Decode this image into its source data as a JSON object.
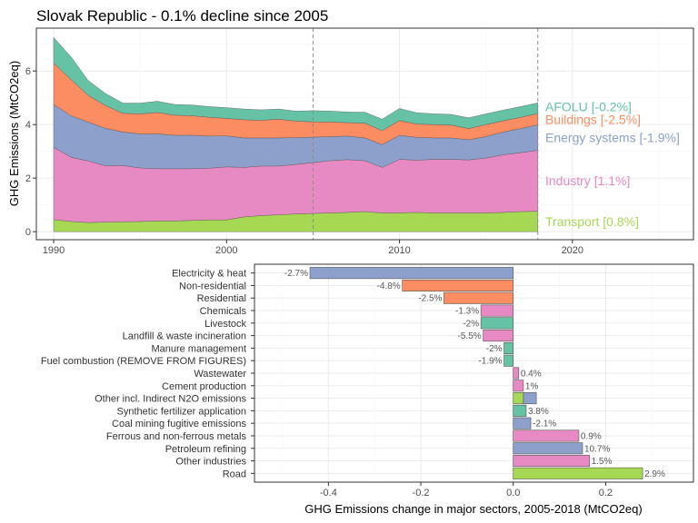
{
  "chart_data": [
    {
      "type": "area",
      "title": "Slovak Republic - 0.1% decline since 2005",
      "xlabel": "",
      "ylabel": "GHG Emissions (MtCO2eq)",
      "xlim": [
        1989,
        2027
      ],
      "ylim": [
        -0.3,
        7.6
      ],
      "xticks": [
        1990,
        2000,
        2010,
        2020
      ],
      "yticks": [
        0,
        2,
        4,
        6
      ],
      "vlines": [
        2005,
        2018
      ],
      "grid": true,
      "x": [
        1990,
        1991,
        1992,
        1993,
        1994,
        1995,
        1996,
        1997,
        1998,
        1999,
        2000,
        2001,
        2002,
        2003,
        2004,
        2005,
        2006,
        2007,
        2008,
        2009,
        2010,
        2011,
        2012,
        2013,
        2014,
        2015,
        2016,
        2017,
        2018
      ],
      "series": [
        {
          "name": "Transport",
          "label": "Transport [0.8%]",
          "color": "#a6d854",
          "values": [
            0.45,
            0.38,
            0.34,
            0.36,
            0.37,
            0.38,
            0.4,
            0.4,
            0.42,
            0.44,
            0.44,
            0.55,
            0.6,
            0.63,
            0.66,
            0.68,
            0.7,
            0.72,
            0.75,
            0.7,
            0.7,
            0.72,
            0.7,
            0.7,
            0.7,
            0.7,
            0.72,
            0.75,
            0.76
          ]
        },
        {
          "name": "Industry",
          "label": "Industry [1.1%]",
          "color": "#e78ac3",
          "values": [
            2.7,
            2.4,
            2.3,
            2.1,
            2.1,
            2.0,
            1.95,
            1.95,
            1.93,
            1.93,
            1.98,
            1.85,
            1.85,
            1.82,
            1.85,
            1.9,
            1.95,
            1.97,
            1.9,
            1.7,
            2.0,
            1.95,
            2.0,
            2.0,
            1.98,
            2.05,
            2.15,
            2.2,
            2.28
          ]
        },
        {
          "name": "Energy systems",
          "label": "Energy systems [-1.9%]",
          "color": "#8da0cb",
          "values": [
            1.6,
            1.55,
            1.45,
            1.4,
            1.25,
            1.27,
            1.3,
            1.25,
            1.25,
            1.2,
            1.16,
            1.1,
            1.05,
            1.05,
            1.0,
            0.95,
            0.9,
            0.88,
            0.85,
            0.85,
            0.9,
            0.85,
            0.8,
            0.8,
            0.75,
            0.8,
            0.85,
            0.9,
            0.95
          ]
        },
        {
          "name": "Buildings",
          "label": "Buildings [-2.5%]",
          "color": "#fc8d62",
          "values": [
            1.55,
            1.35,
            1.0,
            0.85,
            0.7,
            0.75,
            0.8,
            0.75,
            0.73,
            0.7,
            0.65,
            0.68,
            0.66,
            0.7,
            0.62,
            0.57,
            0.55,
            0.5,
            0.55,
            0.52,
            0.55,
            0.5,
            0.5,
            0.48,
            0.42,
            0.45,
            0.42,
            0.42,
            0.42
          ]
        },
        {
          "name": "AFOLU",
          "label": "AFOLU [-0.2%]",
          "color": "#66c2a5",
          "values": [
            0.95,
            0.85,
            0.55,
            0.45,
            0.38,
            0.4,
            0.42,
            0.4,
            0.4,
            0.4,
            0.4,
            0.4,
            0.39,
            0.38,
            0.37,
            0.42,
            0.4,
            0.4,
            0.41,
            0.43,
            0.45,
            0.42,
            0.4,
            0.4,
            0.4,
            0.4,
            0.4,
            0.4,
            0.4
          ]
        }
      ]
    },
    {
      "type": "bar",
      "orientation": "horizontal",
      "xlabel": "GHG Emissions change in major sectors, 2005-2018 (MtCO2eq)",
      "ylabel": "",
      "xlim": [
        -0.56,
        0.39
      ],
      "xticks": [
        -0.4,
        -0.2,
        0.0,
        0.2
      ],
      "xtick_labels": [
        "-0.4",
        "-0.2",
        "0.0",
        "0.2"
      ],
      "grid": true,
      "bars": [
        {
          "category": "Electricity & heat",
          "value": -0.44,
          "label": "-2.7%",
          "color": "#8da0cb"
        },
        {
          "category": "Non-residential",
          "value": -0.24,
          "label": "-4.8%",
          "color": "#fc8d62"
        },
        {
          "category": "Residential",
          "value": -0.15,
          "label": "-2.5%",
          "color": "#fc8d62"
        },
        {
          "category": "Chemicals",
          "value": -0.07,
          "label": "-1.3%",
          "color": "#e78ac3"
        },
        {
          "category": "Livestock",
          "value": -0.07,
          "label": "-2%",
          "color": "#66c2a5"
        },
        {
          "category": "Landfill & waste incineration",
          "value": -0.065,
          "label": "-5.5%",
          "color": "#e78ac3"
        },
        {
          "category": "Manure management",
          "value": -0.02,
          "label": "-2%",
          "color": "#66c2a5"
        },
        {
          "category": "Fuel combustion (REMOVE FROM FIGURES)",
          "value": -0.02,
          "label": "-1.9%",
          "color": "#66c2a5"
        },
        {
          "category": "Wastewater",
          "value": 0.012,
          "label": "0.4%",
          "color": "#e78ac3"
        },
        {
          "category": "Cement production",
          "value": 0.022,
          "label": "1%",
          "color": "#e78ac3"
        },
        {
          "category": "Other incl. Indirect N2O emissions",
          "value": 0.022,
          "value2": 0.05,
          "label": "",
          "color": "#a6d854",
          "color2": "#8da0cb"
        },
        {
          "category": "Synthetic fertilizer application",
          "value": 0.028,
          "label": "3.8%",
          "color": "#66c2a5"
        },
        {
          "category": "Coal mining fugitive emissions",
          "value": 0.038,
          "label": "-2.1%",
          "color": "#8da0cb"
        },
        {
          "category": "Ferrous and non-ferrous metals",
          "value": 0.142,
          "label": "0.9%",
          "color": "#e78ac3"
        },
        {
          "category": "Petroleum refining",
          "value": 0.15,
          "label": "10.7%",
          "color": "#8da0cb"
        },
        {
          "category": "Other industries",
          "value": 0.165,
          "label": "1.5%",
          "color": "#e78ac3"
        },
        {
          "category": "Road",
          "value": 0.28,
          "label": "2.9%",
          "color": "#a6d854"
        }
      ]
    }
  ]
}
